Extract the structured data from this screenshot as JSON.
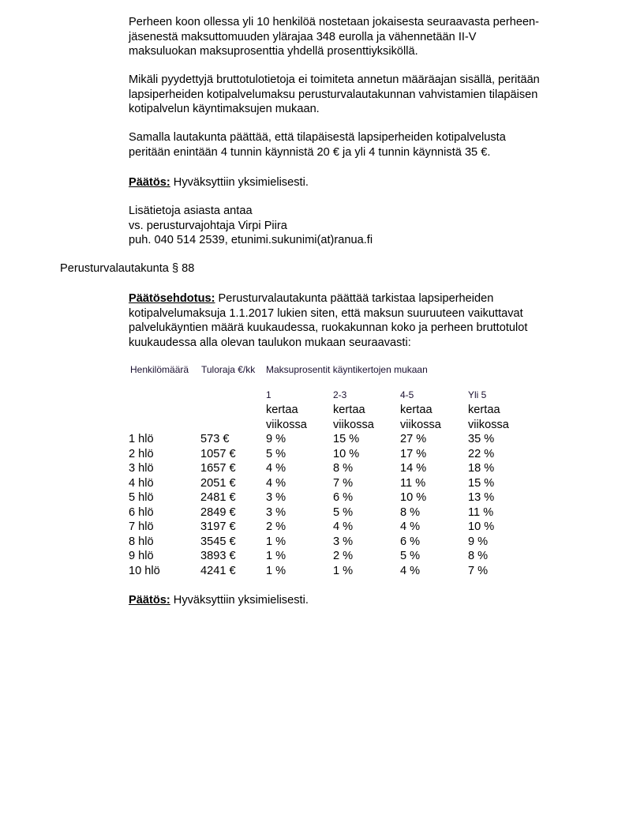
{
  "para1": [
    "Perheen koon ollessa yli 10 henkilöä nostetaan jokaisesta seuraavasta perheen-",
    "jäsenestä maksuttomuuden ylärajaa 348 eurolla ja vähennetään II-V",
    "maksuluokan maksuprosenttia yhdellä prosenttiyksiköllä."
  ],
  "para2": [
    "Mikäli pyydettyjä bruttotulotietoja ei toimiteta annetun määräajan sisällä, peritään",
    "lapsiperheiden kotipalvelumaksu perusturvalautakunnan vahvistamien tilapäisen",
    "kotipalvelun käyntimaksujen mukaan."
  ],
  "para3": [
    "Samalla lautakunta päättää, että tilapäisestä lapsiperheiden kotipalvelusta",
    "peritään enintään 4 tunnin käynnistä 20 €  ja yli 4 tunnin käynnistä 35 €."
  ],
  "decision1": {
    "label": "Päätös:",
    "text": " Hyväksyttiin yksimielisesti."
  },
  "contact": [
    "Lisätietoja asiasta antaa",
    "vs. perusturvajohtaja Virpi Piira",
    "puh. 040 514 2539, etunimi.sukunimi(at)ranua.fi"
  ],
  "section_heading": "Perusturvalautakunta § 88",
  "proposal": {
    "label": "Päätösehdotus:",
    "lines": [
      " Perusturvalautakunta päättää tarkistaa lapsiperheiden",
      "kotipalvelumaksuja 1.1.2017 lukien siten, että maksun suuruuteen vaikuttavat",
      "palvelukäyntien määrä kuukaudessa, ruokakunnan koko ja perheen bruttotulot",
      "kuukaudessa alla olevan taulukon mukaan seuraavasti:"
    ]
  },
  "table": {
    "headers": [
      "Henkilömäärä",
      "Tuloraja €/kk",
      "Maksuprosentit käyntikertojen mukaan"
    ],
    "subheaders": [
      {
        "count": "1",
        "l1": "kertaa",
        "l2": "viikossa"
      },
      {
        "count": "2-3",
        "l1": "kertaa",
        "l2": "viikossa"
      },
      {
        "count": "4-5",
        "l1": "kertaa",
        "l2": "viikossa"
      },
      {
        "count": "Yli 5",
        "l1": "kertaa",
        "l2": "viikossa"
      }
    ],
    "rows": [
      [
        "1 hlö",
        "573 €",
        "9 %",
        "15 %",
        "27 %",
        "35 %"
      ],
      [
        "2 hlö",
        "1057 €",
        "5 %",
        "10 %",
        "17 %",
        "22 %"
      ],
      [
        "3 hlö",
        "1657 €",
        "4 %",
        "8 %",
        "14 %",
        "18 %"
      ],
      [
        "4 hlö",
        "2051 €",
        "4 %",
        "7 %",
        "11 %",
        "15 %"
      ],
      [
        "5 hlö",
        "2481 €",
        "3 %",
        "6 %",
        "10 %",
        "13 %"
      ],
      [
        "6 hlö",
        "2849 €",
        "3 %",
        "5 %",
        "8 %",
        "11 %"
      ],
      [
        "7 hlö",
        "3197 €",
        "2 %",
        "4 %",
        "4 %",
        "10 %"
      ],
      [
        "8 hlö",
        "3545 €",
        "1 %",
        "3 %",
        "6 %",
        "9 %"
      ],
      [
        "9 hlö",
        "3893 €",
        "1 %",
        "2 %",
        "5 %",
        "8 %"
      ],
      [
        "10 hlö",
        "4241 €",
        "1 %",
        "1 %",
        "4 %",
        "7 %"
      ]
    ]
  },
  "decision2": {
    "label": "Päätös:",
    "text": " Hyväksyttiin yksimielisesti."
  }
}
